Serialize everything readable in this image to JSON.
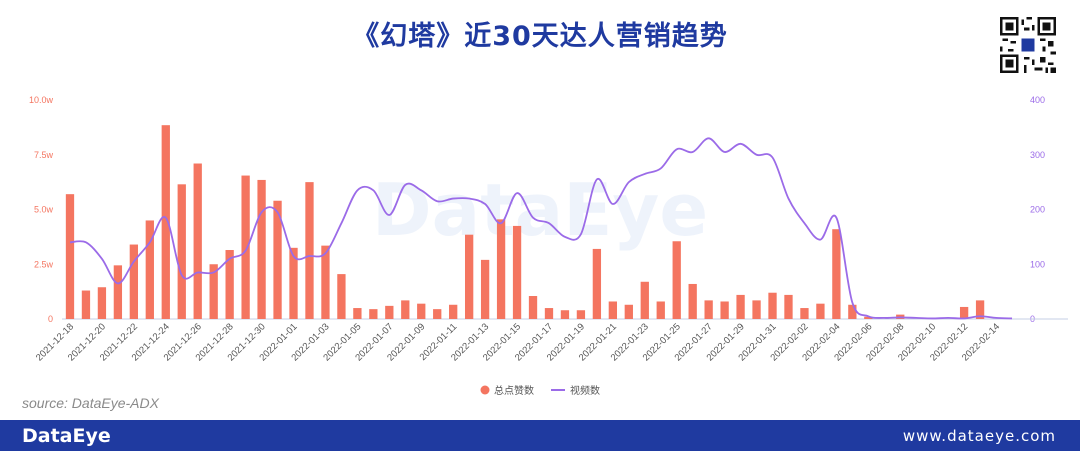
{
  "header": {
    "title": "《幻塔》近30天达人营销趋势"
  },
  "source_text": "source:  DataEye-ADX",
  "footer": {
    "brand": "DataEye",
    "site": "www.dataeye.com"
  },
  "colors": {
    "bar": "#f47560",
    "line": "#9b6be8",
    "left_axis": "#f47560",
    "right_axis": "#9b6be8",
    "footer_bg": "#1f3aa0",
    "title": "#1f3aa0"
  },
  "chart_data": {
    "type": "bar",
    "watermark": "DataEye",
    "categories": [
      "2021-12-18",
      "2021-12-19",
      "2021-12-20",
      "2021-12-21",
      "2021-12-22",
      "2021-12-23",
      "2021-12-24",
      "2021-12-25",
      "2021-12-26",
      "2021-12-27",
      "2021-12-28",
      "2021-12-29",
      "2021-12-30",
      "2021-12-31",
      "2022-01-01",
      "2022-01-02",
      "2022-01-03",
      "2022-01-04",
      "2022-01-05",
      "2022-01-06",
      "2022-01-07",
      "2022-01-08",
      "2022-01-09",
      "2022-01-10",
      "2022-01-11",
      "2022-01-12",
      "2022-01-13",
      "2022-01-14",
      "2022-01-15",
      "2022-01-16",
      "2022-01-17",
      "2022-01-18",
      "2022-01-19",
      "2022-01-20",
      "2022-01-21",
      "2022-01-22",
      "2022-01-23",
      "2022-01-24",
      "2022-01-25",
      "2022-01-26",
      "2022-01-27",
      "2022-01-28",
      "2022-01-29",
      "2022-01-30",
      "2022-01-31",
      "2022-02-01",
      "2022-02-02",
      "2022-02-03",
      "2022-02-04",
      "2022-02-05",
      "2022-02-06",
      "2022-02-07",
      "2022-02-08",
      "2022-02-09",
      "2022-02-10",
      "2022-02-11",
      "2022-02-12",
      "2022-02-13",
      "2022-02-14",
      "2022-02-15"
    ],
    "x_tick_labels": [
      "2021-12-18",
      "2021-12-20",
      "2021-12-22",
      "2021-12-24",
      "2021-12-26",
      "2021-12-28",
      "2021-12-30",
      "2022-01-01",
      "2022-01-03",
      "2022-01-05",
      "2022-01-07",
      "2022-01-09",
      "2022-01-11",
      "2022-01-13",
      "2022-01-15",
      "2022-01-17",
      "2022-01-19",
      "2022-01-21",
      "2022-01-23",
      "2022-01-25",
      "2022-01-27",
      "2022-01-29",
      "2022-01-31",
      "2022-02-02",
      "2022-02-04",
      "2022-02-06",
      "2022-02-08",
      "2022-02-10",
      "2022-02-12",
      "2022-02-14"
    ],
    "series": [
      {
        "name": "总点赞数",
        "type": "bar",
        "axis": "left",
        "values": [
          57000,
          13000,
          14500,
          24500,
          34000,
          45000,
          88500,
          61500,
          71000,
          25000,
          31500,
          65500,
          63500,
          54000,
          32500,
          62500,
          33500,
          20500,
          5000,
          4500,
          6000,
          8500,
          7000,
          4500,
          6500,
          38500,
          27000,
          45500,
          42500,
          10500,
          5000,
          4000,
          4000,
          32000,
          8000,
          6500,
          17000,
          8000,
          35500,
          16000,
          8500,
          8000,
          11000,
          8500,
          12000,
          11000,
          5000,
          7000,
          41000,
          6500,
          1000,
          0,
          2000,
          0,
          0,
          0,
          5500,
          8500,
          0,
          0
        ]
      },
      {
        "name": "视频数",
        "type": "line",
        "axis": "right",
        "values": [
          140,
          140,
          110,
          65,
          105,
          140,
          185,
          80,
          85,
          85,
          110,
          125,
          195,
          195,
          115,
          115,
          120,
          175,
          235,
          235,
          190,
          245,
          235,
          215,
          220,
          220,
          210,
          175,
          230,
          185,
          175,
          150,
          155,
          255,
          210,
          250,
          265,
          275,
          310,
          305,
          330,
          305,
          320,
          300,
          295,
          220,
          175,
          145,
          185,
          30,
          5,
          2,
          3,
          2,
          1,
          2,
          1,
          5,
          2,
          1
        ]
      }
    ],
    "y_left": {
      "min": 0,
      "max": 100000,
      "ticks": [
        0,
        25000,
        50000,
        75000,
        100000
      ],
      "tick_labels": [
        "0",
        "2.5w",
        "5.0w",
        "7.5w",
        "10.0w"
      ]
    },
    "y_right": {
      "min": 0,
      "max": 400,
      "ticks": [
        0,
        100,
        200,
        300,
        400
      ],
      "tick_labels": [
        "0",
        "100",
        "200",
        "300",
        "400"
      ]
    },
    "legend": {
      "position": "bottom-center",
      "items": [
        {
          "label": "总点赞数",
          "marker": "circle"
        },
        {
          "label": "视频数",
          "marker": "line"
        }
      ]
    },
    "grid": false
  }
}
